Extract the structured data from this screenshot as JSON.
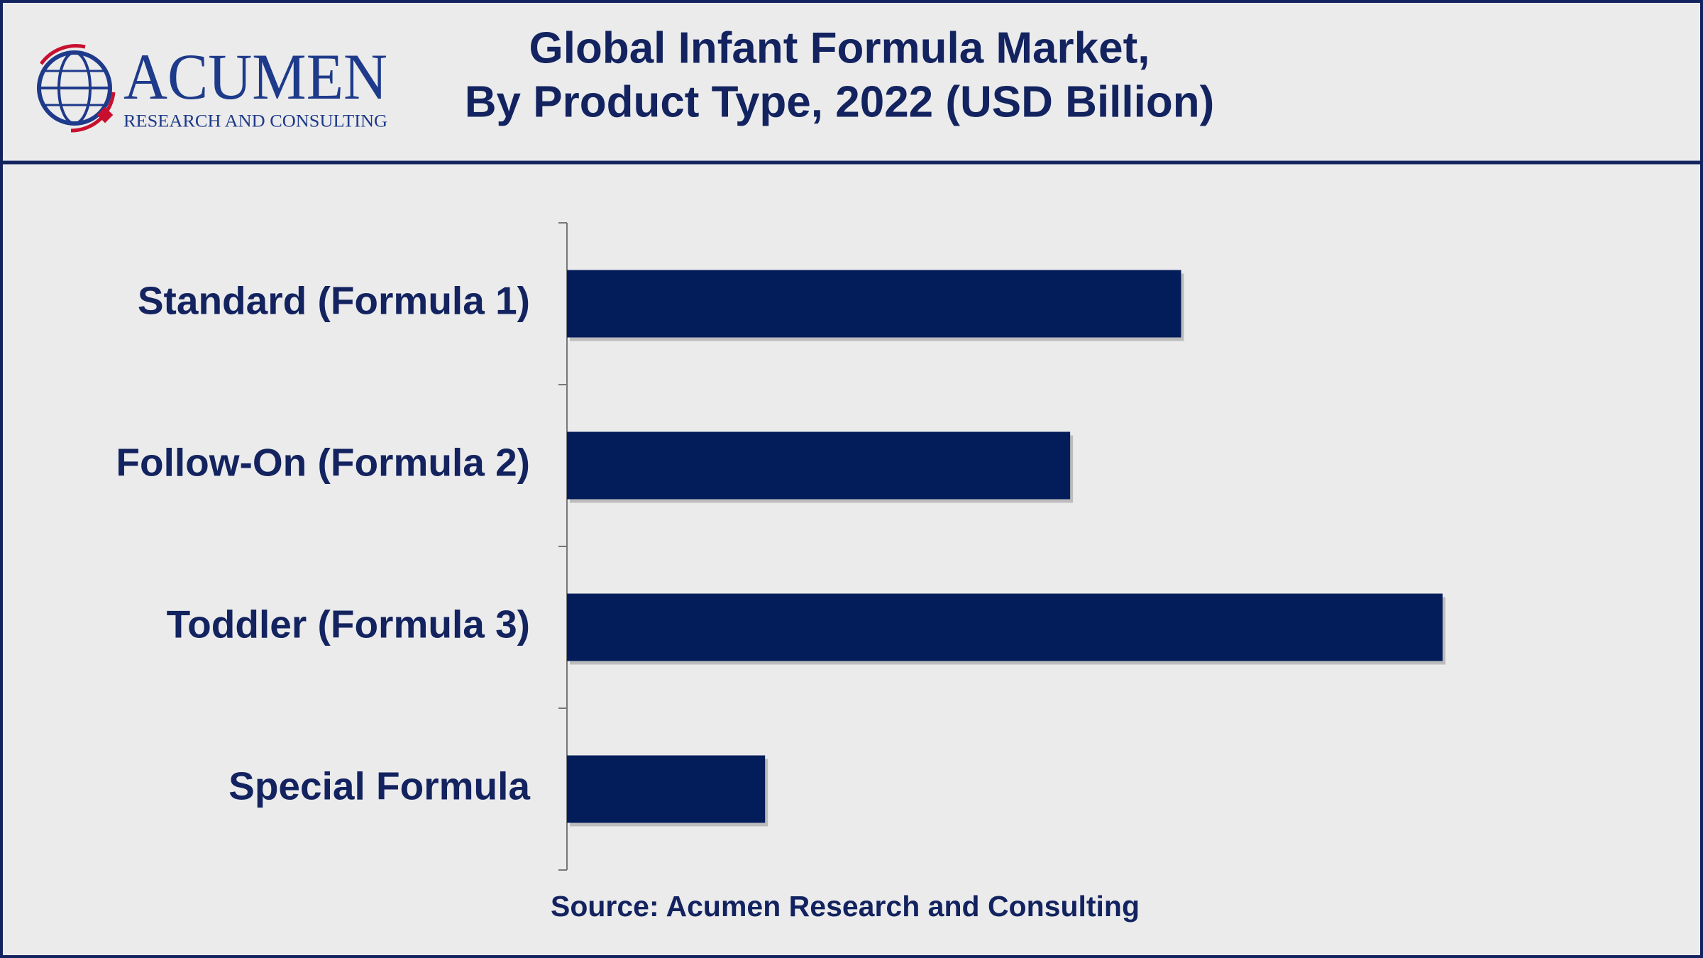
{
  "logo": {
    "name": "ACUMEN",
    "tagline": "RESEARCH AND CONSULTING"
  },
  "chart_data": {
    "type": "hbar",
    "title": [
      "Global Infant Formula Market,",
      "By Product Type, 2022 (USD Billion)"
    ],
    "categories": [
      "Standard (Formula 1)",
      "Follow-On (Formula 2)",
      "Toddler (Formula 3)",
      "Special Formula"
    ],
    "values": [
      15.5,
      12.7,
      22.1,
      5.0
    ],
    "color": "#031d5a",
    "source": "Source: Acumen Research and Consulting"
  }
}
